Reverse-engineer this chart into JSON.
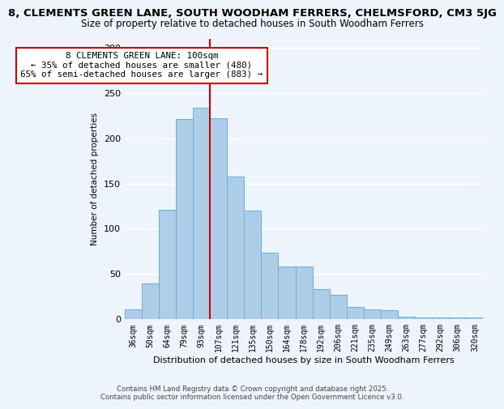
{
  "title": "8, CLEMENTS GREEN LANE, SOUTH WOODHAM FERRERS, CHELMSFORD, CM3 5JG",
  "subtitle": "Size of property relative to detached houses in South Woodham Ferrers",
  "xlabel": "Distribution of detached houses by size in South Woodham Ferrers",
  "ylabel": "Number of detached properties",
  "bin_labels": [
    "36sqm",
    "50sqm",
    "64sqm",
    "79sqm",
    "93sqm",
    "107sqm",
    "121sqm",
    "135sqm",
    "150sqm",
    "164sqm",
    "178sqm",
    "192sqm",
    "206sqm",
    "221sqm",
    "235sqm",
    "249sqm",
    "263sqm",
    "277sqm",
    "292sqm",
    "306sqm",
    "320sqm"
  ],
  "bar_heights": [
    11,
    40,
    121,
    221,
    234,
    222,
    158,
    120,
    74,
    58,
    58,
    33,
    27,
    14,
    11,
    10,
    3,
    2,
    2,
    2,
    2
  ],
  "bar_color": "#aecde8",
  "bar_edge_color": "#6aaed6",
  "vline_x_index": 4.5,
  "vline_color": "#cc0000",
  "annotation_title": "8 CLEMENTS GREEN LANE: 100sqm",
  "annotation_line1": "← 35% of detached houses are smaller (480)",
  "annotation_line2": "65% of semi-detached houses are larger (883) →",
  "annotation_box_color": "#ffffff",
  "annotation_box_edge": "#cc0000",
  "ylim": [
    0,
    310
  ],
  "yticks": [
    0,
    50,
    100,
    150,
    200,
    250,
    300
  ],
  "footnote1": "Contains HM Land Registry data © Crown copyright and database right 2025.",
  "footnote2": "Contains public sector information licensed under the Open Government Licence v3.0.",
  "bg_color": "#eef4fc",
  "grid_color": "#ffffff",
  "title_fontsize": 9.5,
  "subtitle_fontsize": 8.5,
  "annot_fontsize": 7.8,
  "xlabel_fontsize": 8.0,
  "ylabel_fontsize": 7.5,
  "footnote_fontsize": 6.2
}
